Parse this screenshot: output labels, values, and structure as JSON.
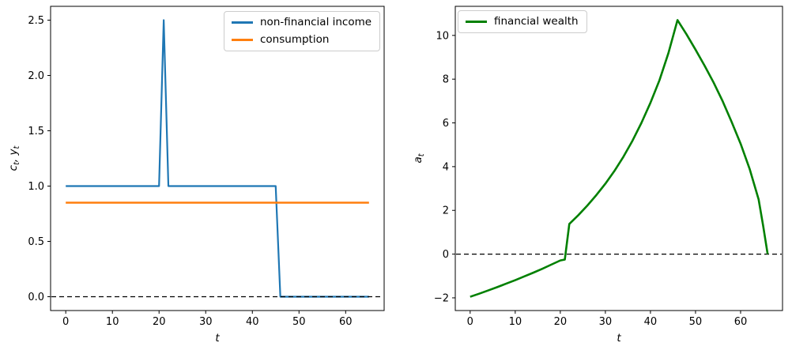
{
  "figure": {
    "background": "#ffffff",
    "dashed_line_color": "#000000"
  },
  "chart_data": [
    {
      "type": "line",
      "title": "",
      "xlabel": [
        [
          "t",
          ""
        ]
      ],
      "ylabel": [
        [
          "c",
          "t"
        ],
        [
          ", y",
          "t"
        ]
      ],
      "xlim": [
        -3.25,
        68.25
      ],
      "ylim": [
        -0.125,
        2.625
      ],
      "xticks": [
        0,
        10,
        20,
        30,
        40,
        50,
        60
      ],
      "xtick_labels": [
        "0",
        "10",
        "20",
        "30",
        "40",
        "50",
        "60"
      ],
      "yticks": [
        0.0,
        0.5,
        1.0,
        1.5,
        2.0,
        2.5
      ],
      "ytick_labels": [
        "0.0",
        "0.5",
        "1.0",
        "1.5",
        "2.0",
        "2.5"
      ],
      "grid": false,
      "legend_position": "upper-right",
      "zero_line": {
        "y": 0,
        "style": "dashed"
      },
      "series": [
        {
          "name": "non-financial income",
          "color": "#1f77b4",
          "line_width": 2.2,
          "points": [
            [
              0,
              1.0
            ],
            [
              20,
              1.0
            ],
            [
              21,
              2.5
            ],
            [
              22,
              1.0
            ],
            [
              45,
              1.0
            ],
            [
              46,
              0.0
            ],
            [
              65,
              0.0
            ]
          ]
        },
        {
          "name": "consumption",
          "color": "#ff7f0e",
          "line_width": 2.6,
          "points": [
            [
              0,
              0.85
            ],
            [
              65,
              0.85
            ]
          ]
        }
      ]
    },
    {
      "type": "line",
      "title": "",
      "xlabel": [
        [
          "t",
          ""
        ]
      ],
      "ylabel": [
        [
          "a",
          "t"
        ]
      ],
      "xlim": [
        -3.3,
        69.3
      ],
      "ylim": [
        -2.58,
        11.33
      ],
      "xticks": [
        0,
        10,
        20,
        30,
        40,
        50,
        60
      ],
      "xtick_labels": [
        "0",
        "10",
        "20",
        "30",
        "40",
        "50",
        "60"
      ],
      "yticks": [
        -2,
        0,
        2,
        4,
        6,
        8,
        10
      ],
      "ytick_labels": [
        "−2",
        "0",
        "2",
        "4",
        "6",
        "8",
        "10"
      ],
      "grid": false,
      "legend_position": "upper-left",
      "zero_line": {
        "y": 0,
        "style": "dashed"
      },
      "series": [
        {
          "name": "financial wealth",
          "color": "#008000",
          "line_width": 2.6,
          "points": [
            [
              0,
              -1.95
            ],
            [
              2,
              -1.81
            ],
            [
              4,
              -1.66
            ],
            [
              6,
              -1.51
            ],
            [
              8,
              -1.35
            ],
            [
              10,
              -1.19
            ],
            [
              12,
              -1.02
            ],
            [
              14,
              -0.85
            ],
            [
              16,
              -0.67
            ],
            [
              18,
              -0.48
            ],
            [
              20,
              -0.29
            ],
            [
              21,
              -0.25
            ],
            [
              22,
              1.38
            ],
            [
              24,
              1.78
            ],
            [
              26,
              2.22
            ],
            [
              28,
              2.7
            ],
            [
              30,
              3.22
            ],
            [
              32,
              3.8
            ],
            [
              34,
              4.45
            ],
            [
              36,
              5.18
            ],
            [
              38,
              6.0
            ],
            [
              40,
              6.92
            ],
            [
              42,
              7.95
            ],
            [
              44,
              9.2
            ],
            [
              46,
              10.7
            ],
            [
              48,
              10.05
            ],
            [
              50,
              9.35
            ],
            [
              52,
              8.62
            ],
            [
              54,
              7.85
            ],
            [
              56,
              7.0
            ],
            [
              58,
              6.05
            ],
            [
              60,
              5.05
            ],
            [
              62,
              3.9
            ],
            [
              63,
              3.2
            ],
            [
              64,
              2.5
            ],
            [
              65,
              1.3
            ],
            [
              66,
              0.0
            ]
          ]
        }
      ]
    }
  ]
}
